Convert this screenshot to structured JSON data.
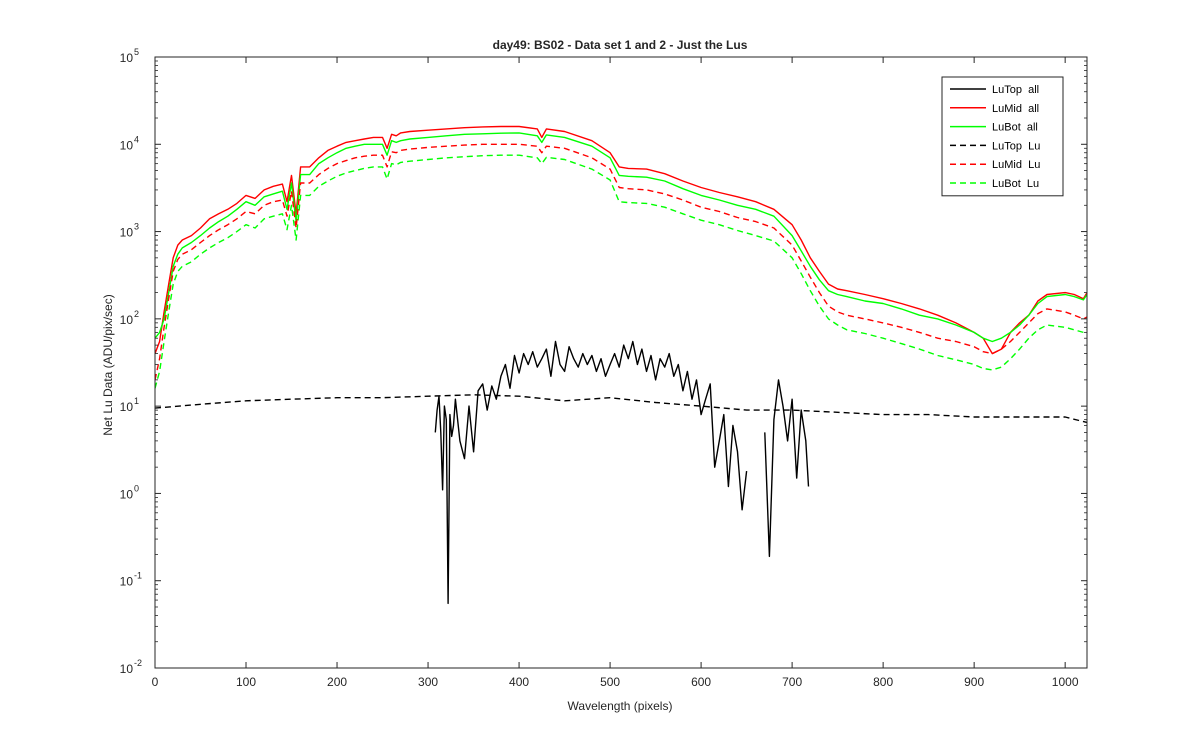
{
  "chart_data": {
    "type": "line",
    "title": "day49: BS02 - Data set 1 and 2 - Just the Lus",
    "xlabel": "Wavelength (pixels)",
    "ylabel": "Net Lu Data (ADU/pix/sec)",
    "xlim": [
      0,
      1024
    ],
    "ylim": [
      0.01,
      100000
    ],
    "yscale": "log",
    "grid": false,
    "legend_position": "top-right",
    "x_ticks": [
      {
        "value": 0,
        "label": "0"
      },
      {
        "value": 100,
        "label": "100"
      },
      {
        "value": 200,
        "label": "200"
      },
      {
        "value": 300,
        "label": "300"
      },
      {
        "value": 400,
        "label": "400"
      },
      {
        "value": 500,
        "label": "500"
      },
      {
        "value": 600,
        "label": "600"
      },
      {
        "value": 700,
        "label": "700"
      },
      {
        "value": 800,
        "label": "800"
      },
      {
        "value": 900,
        "label": "900"
      },
      {
        "value": 1000,
        "label": "1000"
      }
    ],
    "y_ticks": [
      {
        "value": 0.01,
        "base": "10",
        "exp": "-2"
      },
      {
        "value": 0.1,
        "base": "10",
        "exp": "-1"
      },
      {
        "value": 1,
        "base": "10",
        "exp": "0"
      },
      {
        "value": 10,
        "base": "10",
        "exp": "1"
      },
      {
        "value": 100,
        "base": "10",
        "exp": "2"
      },
      {
        "value": 1000,
        "base": "10",
        "exp": "3"
      },
      {
        "value": 10000,
        "base": "10",
        "exp": "4"
      },
      {
        "value": 100000,
        "base": "10",
        "exp": "5"
      }
    ],
    "series": [
      {
        "name": "LuTop  all",
        "color": "#000000",
        "dash": "solid",
        "x": [
          308,
          310,
          312,
          314,
          316,
          318,
          320,
          322,
          324,
          326,
          328,
          330,
          335,
          340,
          345,
          350,
          355,
          360,
          365,
          370,
          375,
          380,
          385,
          390,
          395,
          400,
          405,
          410,
          415,
          420,
          425,
          430,
          435,
          440,
          445,
          450,
          455,
          460,
          465,
          470,
          475,
          480,
          485,
          490,
          495,
          500,
          505,
          510,
          515,
          520,
          525,
          530,
          535,
          540,
          545,
          550,
          555,
          560,
          565,
          570,
          575,
          580,
          585,
          590,
          595,
          600,
          605,
          610,
          615,
          620,
          625,
          630,
          635,
          640,
          645,
          650,
          655,
          660,
          665,
          670,
          675,
          680,
          685,
          690,
          695,
          700,
          705,
          710,
          715,
          718
        ],
        "y": [
          5,
          9,
          13,
          5,
          1.1,
          10,
          7,
          0.055,
          8,
          4.5,
          6,
          12,
          4,
          2.5,
          10,
          3,
          15,
          18,
          9,
          17,
          12,
          22,
          30,
          16,
          38,
          24,
          40,
          30,
          42,
          28,
          35,
          45,
          22,
          55,
          30,
          25,
          48,
          35,
          28,
          40,
          30,
          38,
          25,
          35,
          22,
          30,
          40,
          28,
          50,
          35,
          55,
          30,
          45,
          25,
          38,
          20,
          35,
          28,
          40,
          22,
          30,
          15,
          25,
          12,
          20,
          8,
          12,
          18,
          2,
          4,
          8,
          1.2,
          6,
          3,
          0.65,
          1.8,
          0,
          0,
          0,
          5,
          0.19,
          7,
          20,
          10,
          4,
          12,
          1.5,
          9,
          4,
          1.2
        ]
      },
      {
        "name": "LuMid  all",
        "color": "#ff0000",
        "dash": "solid",
        "x": [
          0,
          5,
          10,
          15,
          20,
          25,
          30,
          40,
          50,
          60,
          70,
          80,
          90,
          100,
          110,
          120,
          130,
          140,
          145,
          150,
          155,
          160,
          170,
          180,
          190,
          200,
          210,
          220,
          230,
          240,
          250,
          255,
          260,
          265,
          270,
          280,
          300,
          320,
          340,
          360,
          380,
          400,
          420,
          425,
          430,
          450,
          480,
          500,
          510,
          520,
          540,
          560,
          580,
          600,
          620,
          640,
          660,
          680,
          700,
          710,
          720,
          730,
          740,
          750,
          760,
          780,
          800,
          820,
          840,
          860,
          880,
          900,
          910,
          920,
          930,
          940,
          950,
          960,
          970,
          980,
          1000,
          1010,
          1020,
          1024
        ],
        "y": [
          40,
          55,
          120,
          250,
          500,
          700,
          800,
          900,
          1100,
          1400,
          1600,
          1800,
          2100,
          2600,
          2400,
          3000,
          3300,
          3500,
          2200,
          4400,
          1600,
          5500,
          5500,
          7000,
          8500,
          9500,
          10500,
          11000,
          11500,
          12000,
          12000,
          9000,
          13000,
          12500,
          13500,
          14000,
          14500,
          15000,
          15500,
          15800,
          16000,
          16000,
          15000,
          12000,
          15000,
          14000,
          11000,
          8000,
          5500,
          5300,
          5200,
          4600,
          3800,
          3200,
          2800,
          2500,
          2200,
          1800,
          1200,
          800,
          500,
          350,
          250,
          220,
          210,
          190,
          170,
          150,
          130,
          110,
          90,
          70,
          60,
          40,
          45,
          70,
          90,
          110,
          160,
          190,
          200,
          190,
          170,
          200
        ]
      },
      {
        "name": "LuBot  all",
        "color": "#00ff00",
        "dash": "solid",
        "x": [
          0,
          5,
          10,
          15,
          20,
          25,
          30,
          40,
          50,
          60,
          70,
          80,
          90,
          100,
          110,
          120,
          130,
          140,
          145,
          150,
          155,
          160,
          170,
          180,
          190,
          200,
          210,
          220,
          230,
          240,
          250,
          255,
          260,
          265,
          270,
          280,
          300,
          320,
          340,
          360,
          380,
          400,
          420,
          425,
          430,
          450,
          480,
          500,
          510,
          520,
          540,
          560,
          580,
          600,
          620,
          640,
          660,
          680,
          700,
          710,
          720,
          730,
          740,
          750,
          760,
          780,
          800,
          820,
          840,
          860,
          880,
          900,
          910,
          920,
          930,
          940,
          950,
          960,
          970,
          980,
          1000,
          1010,
          1020,
          1024
        ],
        "y": [
          60,
          70,
          100,
          200,
          400,
          550,
          650,
          750,
          900,
          1100,
          1300,
          1500,
          1800,
          2200,
          2000,
          2500,
          2700,
          2900,
          1800,
          3600,
          1300,
          4500,
          4500,
          6000,
          7000,
          8000,
          9000,
          9500,
          10000,
          10000,
          10000,
          7500,
          11000,
          10500,
          11000,
          11500,
          12000,
          12500,
          13000,
          13200,
          13400,
          13500,
          12500,
          10500,
          12800,
          12000,
          9500,
          7000,
          4400,
          4300,
          4200,
          3800,
          3100,
          2600,
          2300,
          2000,
          1800,
          1500,
          900,
          600,
          400,
          280,
          210,
          190,
          180,
          160,
          150,
          130,
          110,
          100,
          85,
          70,
          60,
          55,
          60,
          70,
          85,
          110,
          150,
          180,
          190,
          180,
          165,
          190
        ]
      },
      {
        "name": "LuTop  Lu",
        "color": "#000000",
        "dash": "dashed",
        "x": [
          0,
          50,
          100,
          150,
          200,
          250,
          300,
          350,
          400,
          450,
          500,
          550,
          600,
          650,
          700,
          750,
          800,
          850,
          900,
          950,
          1000,
          1024
        ],
        "y": [
          9.5,
          10.5,
          11.5,
          12,
          12.5,
          12.5,
          13,
          13.5,
          13,
          11.5,
          12.5,
          11,
          10,
          9,
          9,
          8.5,
          8,
          8,
          7.5,
          7.5,
          7.5,
          6.5
        ]
      },
      {
        "name": "LuMid  Lu",
        "color": "#ff0000",
        "dash": "dashed",
        "x": [
          0,
          5,
          10,
          15,
          20,
          25,
          30,
          40,
          50,
          60,
          70,
          80,
          90,
          100,
          110,
          120,
          130,
          140,
          145,
          150,
          155,
          160,
          170,
          180,
          190,
          200,
          210,
          220,
          230,
          240,
          250,
          255,
          260,
          265,
          270,
          280,
          300,
          320,
          340,
          360,
          380,
          400,
          420,
          425,
          430,
          450,
          480,
          500,
          510,
          520,
          540,
          560,
          580,
          600,
          620,
          640,
          660,
          680,
          700,
          710,
          720,
          730,
          740,
          750,
          760,
          780,
          800,
          820,
          840,
          860,
          880,
          900,
          910,
          920,
          930,
          940,
          950,
          960,
          970,
          980,
          1000,
          1010,
          1020,
          1024
        ],
        "y": [
          20,
          35,
          80,
          170,
          350,
          480,
          550,
          620,
          750,
          900,
          1050,
          1200,
          1400,
          1700,
          1600,
          2000,
          2200,
          2300,
          1500,
          2900,
          1100,
          3600,
          3600,
          4500,
          5300,
          6000,
          6500,
          7000,
          7300,
          7500,
          7500,
          5500,
          8200,
          8000,
          8500,
          8800,
          9200,
          9500,
          9800,
          10000,
          10000,
          10000,
          9500,
          8000,
          9500,
          9000,
          7000,
          5200,
          3200,
          3100,
          3000,
          2700,
          2300,
          1900,
          1700,
          1450,
          1300,
          1100,
          700,
          460,
          300,
          200,
          140,
          120,
          110,
          100,
          90,
          80,
          70,
          60,
          55,
          48,
          42,
          40,
          45,
          55,
          70,
          90,
          115,
          130,
          120,
          110,
          100,
          105
        ]
      },
      {
        "name": "LuBot  Lu",
        "color": "#00ff00",
        "dash": "dashed",
        "x": [
          0,
          5,
          10,
          15,
          20,
          25,
          30,
          40,
          50,
          60,
          70,
          80,
          90,
          100,
          110,
          120,
          130,
          140,
          145,
          150,
          155,
          160,
          170,
          180,
          190,
          200,
          210,
          220,
          230,
          240,
          250,
          255,
          260,
          265,
          270,
          280,
          300,
          320,
          340,
          360,
          380,
          400,
          420,
          425,
          430,
          450,
          480,
          500,
          510,
          520,
          540,
          560,
          580,
          600,
          620,
          640,
          660,
          680,
          700,
          710,
          720,
          730,
          740,
          750,
          760,
          780,
          800,
          820,
          840,
          860,
          880,
          900,
          910,
          920,
          930,
          940,
          950,
          960,
          970,
          980,
          1000,
          1010,
          1020,
          1024
        ],
        "y": [
          16,
          25,
          55,
          120,
          250,
          350,
          400,
          450,
          550,
          650,
          750,
          850,
          1000,
          1200,
          1100,
          1400,
          1500,
          1600,
          1050,
          2000,
          800,
          2600,
          2600,
          3300,
          3800,
          4300,
          4700,
          5000,
          5300,
          5500,
          5500,
          4000,
          6000,
          5800,
          6200,
          6400,
          6700,
          7000,
          7200,
          7400,
          7500,
          7500,
          7000,
          6000,
          7100,
          6700,
          5200,
          3900,
          2200,
          2150,
          2100,
          1900,
          1600,
          1350,
          1200,
          1030,
          900,
          780,
          500,
          330,
          210,
          140,
          100,
          85,
          75,
          68,
          60,
          52,
          45,
          38,
          34,
          30,
          27,
          26,
          28,
          35,
          45,
          60,
          75,
          85,
          80,
          75,
          70,
          75
        ]
      }
    ]
  }
}
